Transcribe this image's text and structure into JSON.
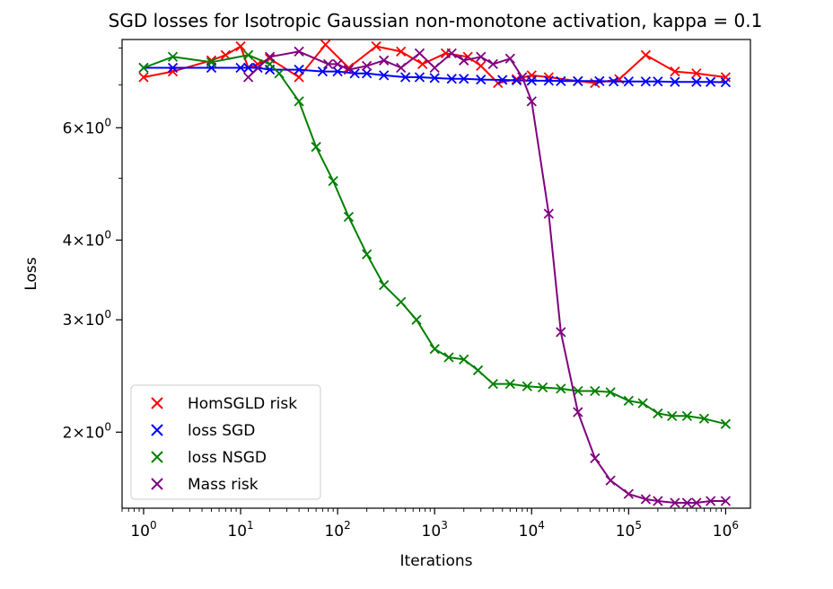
{
  "chart_data": {
    "type": "line",
    "title": "SGD losses for Isotropic Gaussian non-monotone activation, kappa = 0.1",
    "xlabel": "Iterations",
    "ylabel": "Loss",
    "xscale": "log",
    "yscale": "log",
    "xlim": [
      0.6,
      1800000.0
    ],
    "ylim": [
      1.52,
      8.25
    ],
    "x_ticks": [
      {
        "value": 1,
        "base": "10",
        "exp": "0"
      },
      {
        "value": 10,
        "base": "10",
        "exp": "1"
      },
      {
        "value": 100,
        "base": "10",
        "exp": "2"
      },
      {
        "value": 1000,
        "base": "10",
        "exp": "3"
      },
      {
        "value": 10000,
        "base": "10",
        "exp": "4"
      },
      {
        "value": 100000,
        "base": "10",
        "exp": "5"
      },
      {
        "value": 1000000,
        "base": "10",
        "exp": "6"
      }
    ],
    "y_ticks": [
      {
        "value": 2,
        "mant": "2",
        "base": "10",
        "exp": "0"
      },
      {
        "value": 3,
        "mant": "3",
        "base": "10",
        "exp": "0"
      },
      {
        "value": 4,
        "mant": "4",
        "base": "10",
        "exp": "0"
      },
      {
        "value": 6,
        "mant": "6",
        "base": "10",
        "exp": "0"
      }
    ],
    "legend_position": "lower-left",
    "grid": false,
    "series": [
      {
        "name": "HomSGLD risk",
        "color": "#ff0000",
        "x": [
          1,
          2,
          5,
          7,
          10,
          12,
          15,
          20,
          40,
          75,
          130,
          250,
          450,
          750,
          1300,
          2200,
          3000,
          4500,
          7000,
          10000,
          15000,
          30000,
          45000,
          80000,
          150000,
          300000,
          500000,
          1000000
        ],
        "y": [
          7.2,
          7.35,
          7.65,
          7.8,
          8.05,
          7.45,
          7.55,
          7.7,
          7.2,
          8.1,
          7.45,
          8.05,
          7.9,
          7.55,
          7.85,
          7.75,
          7.5,
          7.05,
          7.15,
          7.25,
          7.2,
          7.1,
          7.05,
          7.15,
          7.8,
          7.35,
          7.3,
          7.2
        ]
      },
      {
        "name": "loss SGD",
        "color": "#0000ff",
        "x": [
          1,
          2,
          5,
          10,
          12,
          15,
          20,
          40,
          70,
          100,
          150,
          200,
          300,
          500,
          700,
          1000,
          1500,
          2000,
          3000,
          5000,
          7000,
          10000,
          15000,
          20000,
          30000,
          50000,
          70000,
          100000,
          150000,
          200000,
          300000,
          500000,
          700000,
          1000000
        ],
        "y": [
          7.45,
          7.45,
          7.45,
          7.45,
          7.45,
          7.45,
          7.4,
          7.4,
          7.35,
          7.35,
          7.3,
          7.3,
          7.25,
          7.2,
          7.2,
          7.18,
          7.16,
          7.16,
          7.14,
          7.13,
          7.12,
          7.11,
          7.11,
          7.1,
          7.1,
          7.1,
          7.09,
          7.09,
          7.09,
          7.09,
          7.08,
          7.08,
          7.08,
          7.07
        ]
      },
      {
        "name": "loss NSGD",
        "color": "#008000",
        "x": [
          1,
          2,
          5,
          12,
          20,
          25,
          40,
          60,
          90,
          130,
          200,
          300,
          450,
          650,
          1000,
          1400,
          2000,
          2800,
          4000,
          6000,
          9000,
          13000,
          20000,
          30000,
          45000,
          65000,
          100000,
          140000,
          200000,
          280000,
          400000,
          600000,
          1000000
        ],
        "y": [
          7.45,
          7.75,
          7.6,
          7.8,
          7.55,
          7.3,
          6.6,
          5.6,
          4.95,
          4.35,
          3.8,
          3.4,
          3.2,
          3.0,
          2.7,
          2.62,
          2.6,
          2.5,
          2.38,
          2.38,
          2.36,
          2.35,
          2.34,
          2.32,
          2.32,
          2.31,
          2.24,
          2.22,
          2.14,
          2.12,
          2.12,
          2.1,
          2.06
        ]
      },
      {
        "name": "Mass risk",
        "color": "#800080",
        "x": [
          12,
          20,
          40,
          80,
          100,
          130,
          200,
          300,
          450,
          700,
          1000,
          1500,
          2000,
          3000,
          4000,
          6000,
          8000,
          10000,
          15000,
          20000,
          30000,
          45000,
          65000,
          100000,
          150000,
          200000,
          300000,
          400000,
          500000,
          700000,
          1000000
        ],
        "y": [
          7.2,
          7.75,
          7.9,
          7.55,
          7.55,
          7.4,
          7.5,
          7.65,
          7.45,
          7.85,
          7.45,
          7.85,
          7.65,
          7.75,
          7.55,
          7.7,
          7.2,
          6.6,
          4.4,
          2.87,
          2.15,
          1.82,
          1.68,
          1.6,
          1.57,
          1.56,
          1.55,
          1.55,
          1.55,
          1.56,
          1.56
        ]
      }
    ]
  }
}
